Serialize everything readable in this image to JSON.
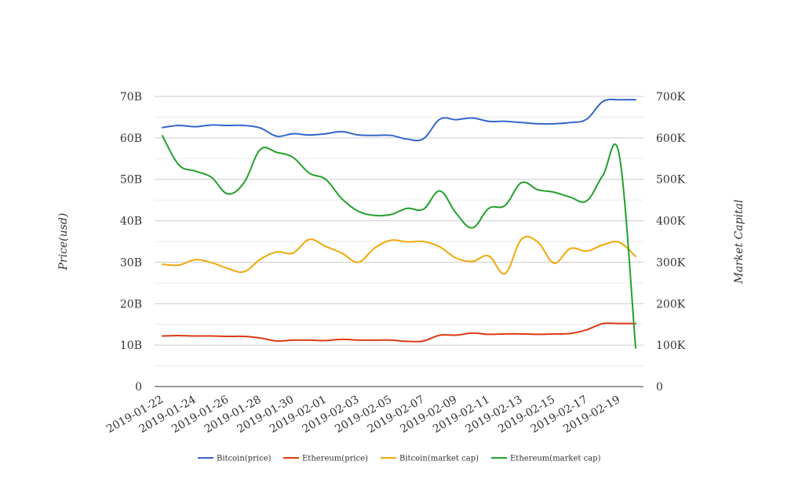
{
  "chart_data": {
    "type": "line",
    "title": "",
    "xlabel": "",
    "ylabel": "Price(usd)",
    "y2label": "Market Capital",
    "ylim": [
      0,
      70000000000
    ],
    "y2lim": [
      0,
      700000
    ],
    "y_ticks": [
      "0",
      "10B",
      "20B",
      "30B",
      "40B",
      "50B",
      "60B",
      "70B"
    ],
    "y2_ticks": [
      "0",
      "100K",
      "200K",
      "300K",
      "400K",
      "500K",
      "600K",
      "700K"
    ],
    "grid": true,
    "legend_position": "bottom",
    "x": [
      "2019-01-22",
      "2019-01-23",
      "2019-01-24",
      "2019-01-25",
      "2019-01-26",
      "2019-01-27",
      "2019-01-28",
      "2019-01-29",
      "2019-01-30",
      "2019-01-31",
      "2019-02-01",
      "2019-02-02",
      "2019-02-03",
      "2019-02-04",
      "2019-02-05",
      "2019-02-06",
      "2019-02-07",
      "2019-02-08",
      "2019-02-09",
      "2019-02-10",
      "2019-02-11",
      "2019-02-12",
      "2019-02-13",
      "2019-02-14",
      "2019-02-15",
      "2019-02-16",
      "2019-02-17",
      "2019-02-18",
      "2019-02-19",
      "2019-02-20"
    ],
    "x_tick_labels": [
      "2019-01-22",
      "2019-01-24",
      "2019-01-26",
      "2019-01-28",
      "2019-01-30",
      "2019-02-01",
      "2019-02-03",
      "2019-02-05",
      "2019-02-07",
      "2019-02-09",
      "2019-02-11",
      "2019-02-13",
      "2019-02-15",
      "2019-02-17",
      "2019-02-19"
    ],
    "series": [
      {
        "name": "Bitcoin(price)",
        "color": "#3366cc",
        "axis": "left",
        "values": [
          62.5,
          63.0,
          62.7,
          63.1,
          63.0,
          63.0,
          62.4,
          60.4,
          61.0,
          60.7,
          61.0,
          61.5,
          60.7,
          60.6,
          60.6,
          59.7,
          59.8,
          64.5,
          64.4,
          64.8,
          64.0,
          64.0,
          63.7,
          63.4,
          63.4,
          63.7,
          64.5,
          68.8,
          69.2,
          69.2
        ]
      },
      {
        "name": "Ethereum(price)",
        "color": "#dc3912",
        "axis": "left",
        "values": [
          12.2,
          12.3,
          12.2,
          12.2,
          12.1,
          12.1,
          11.7,
          11.0,
          11.2,
          11.2,
          11.1,
          11.4,
          11.2,
          11.2,
          11.2,
          10.9,
          11.0,
          12.4,
          12.4,
          12.9,
          12.6,
          12.7,
          12.7,
          12.6,
          12.7,
          12.8,
          13.7,
          15.2,
          15.2,
          15.2
        ]
      },
      {
        "name": "Bitcoin(market cap)",
        "color": "#f1a80a",
        "axis": "right",
        "values": [
          295000,
          293000,
          306000,
          299000,
          285000,
          277000,
          307000,
          325000,
          322000,
          355000,
          338000,
          322000,
          300000,
          334000,
          353000,
          349000,
          350000,
          337000,
          310000,
          302000,
          315000,
          273000,
          355000,
          349000,
          298000,
          333000,
          327000,
          342000,
          348000,
          314000
        ]
      },
      {
        "name": "Ethereum(market cap)",
        "color": "#22a02c",
        "axis": "right",
        "values": [
          605000,
          535000,
          520000,
          505000,
          465000,
          492000,
          572000,
          565000,
          553000,
          515000,
          500000,
          453000,
          423000,
          413000,
          415000,
          430000,
          428000,
          472000,
          418000,
          383000,
          430000,
          437000,
          492000,
          475000,
          469000,
          457000,
          448000,
          510000,
          558000,
          93000
        ]
      }
    ]
  }
}
